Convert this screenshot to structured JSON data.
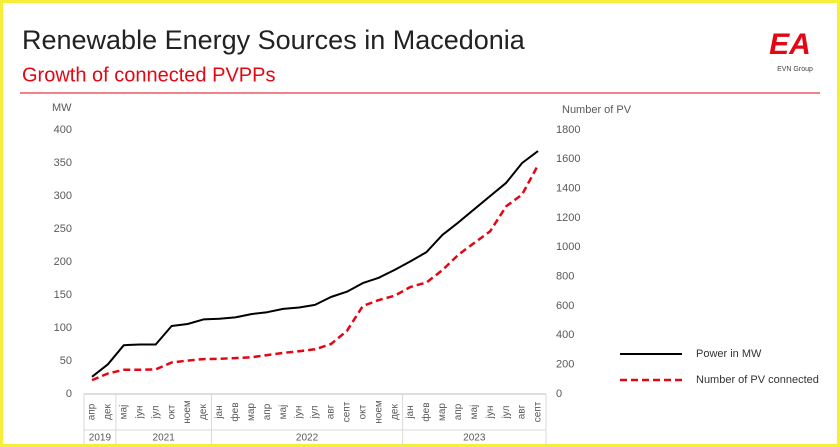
{
  "chart_data": {
    "type": "line",
    "title": "Renewable Energy Sources in Macedonia",
    "subtitle": "Growth of connected PVPPs",
    "logo": "EA",
    "logo_sub": "EVN Group",
    "ylabel": "MW",
    "y2label": "Number of PV",
    "groups": [
      {
        "label": "2019",
        "categories": [
          "апр",
          "дек"
        ]
      },
      {
        "label": "2021",
        "categories": [
          "мај",
          "јун",
          "јул",
          "окт",
          "ноем",
          "дек"
        ]
      },
      {
        "label": "2022",
        "categories": [
          "јан",
          "фев",
          "мар",
          "апр",
          "мај",
          "јун",
          "јул",
          "авг",
          "септ",
          "окт",
          "ноем",
          "дек"
        ]
      },
      {
        "label": "2023",
        "categories": [
          "јан",
          "фев",
          "мар",
          "апр",
          "мај",
          "јун",
          "јул",
          "авг",
          "септ"
        ]
      }
    ],
    "series": [
      {
        "name": "Power in MW",
        "color": "#000000",
        "dash": false,
        "values": [
          26,
          45,
          74,
          75,
          75,
          103,
          106,
          113,
          114,
          116,
          121,
          124,
          129,
          131,
          135,
          147,
          155,
          168,
          176,
          188,
          201,
          215,
          241,
          260,
          280,
          300,
          320,
          350,
          368
        ]
      },
      {
        "name": "Number of PV connected",
        "color": "#e30613",
        "dash": true,
        "axis": "y2",
        "values": [
          95,
          140,
          165,
          165,
          168,
          215,
          228,
          238,
          240,
          245,
          250,
          265,
          280,
          292,
          305,
          340,
          430,
          600,
          640,
          670,
          730,
          760,
          845,
          950,
          1030,
          1110,
          1280,
          1360,
          1560
        ]
      }
    ],
    "ylim": [
      0,
      400
    ],
    "yticks": [
      0,
      50,
      100,
      150,
      200,
      250,
      300,
      350,
      400
    ],
    "y2lim": [
      0,
      1800
    ],
    "y2ticks": [
      0,
      200,
      400,
      600,
      800,
      1000,
      1200,
      1400,
      1600,
      1800
    ],
    "grid": false,
    "legend": "lower right"
  }
}
